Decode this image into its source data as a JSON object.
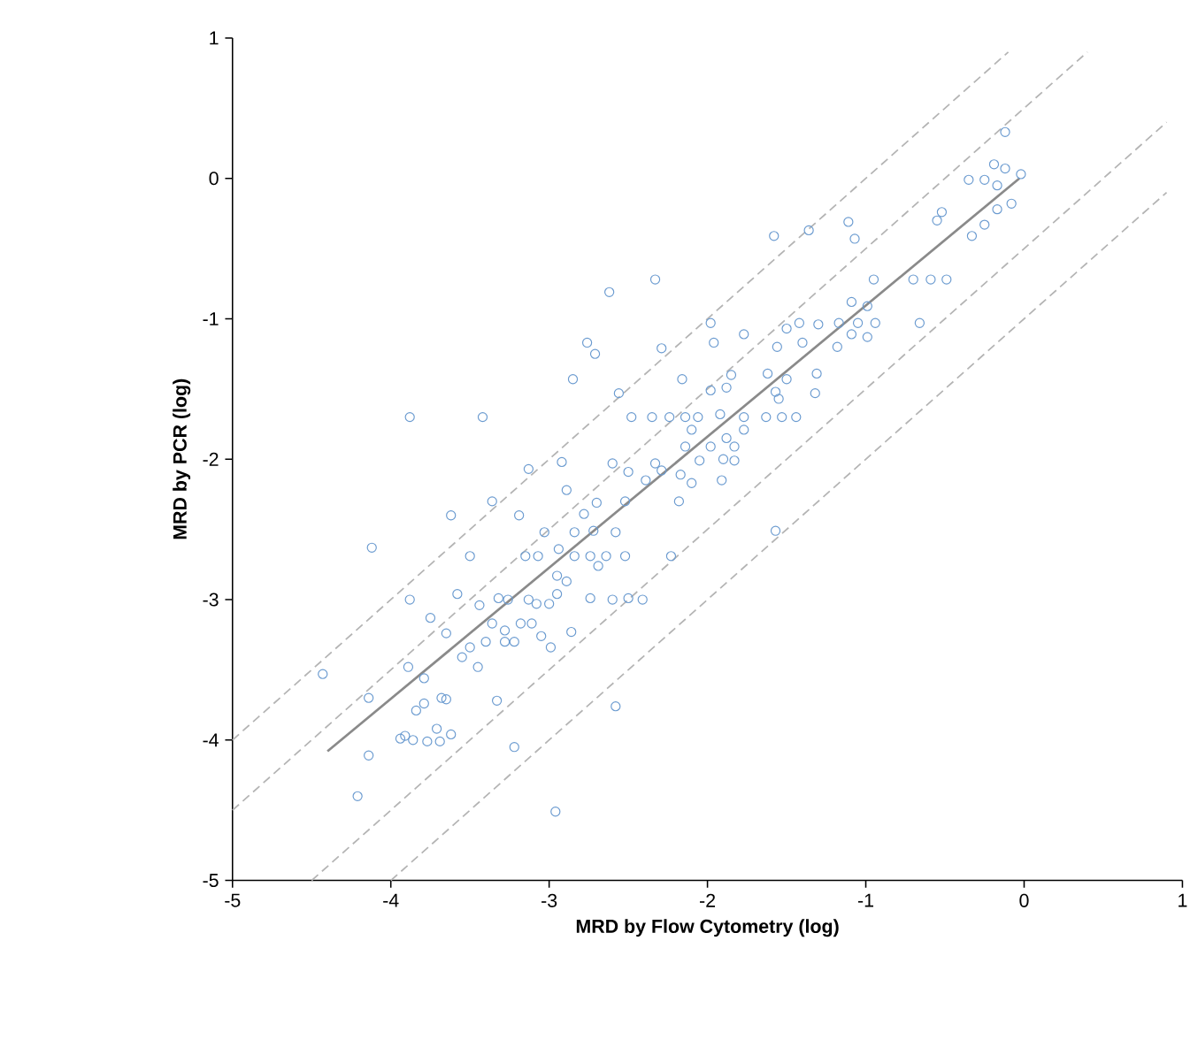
{
  "chart_data": {
    "type": "scatter",
    "xlabel": "MRD by Flow Cytometry (log)",
    "ylabel": "MRD by PCR (log)",
    "xlim": [
      -5,
      1
    ],
    "ylim": [
      -5,
      1
    ],
    "xticks": [
      -5,
      -4,
      -3,
      -2,
      -1,
      0,
      1
    ],
    "yticks": [
      -5,
      -4,
      -3,
      -2,
      -1,
      0,
      1
    ],
    "series": [
      {
        "type": "line",
        "color": "#b4b4b4",
        "line_style": "dashed",
        "marker": "none",
        "x": [
          -5,
          -0.1
        ],
        "values": [
          -4,
          0.9
        ]
      },
      {
        "type": "line",
        "color": "#b4b4b4",
        "line_style": "dashed",
        "marker": "none",
        "x": [
          -5,
          0.4
        ],
        "values": [
          -4.5,
          0.9
        ]
      },
      {
        "type": "line",
        "color": "#b4b4b4",
        "line_style": "dashed",
        "marker": "none",
        "x": [
          -4.5,
          0.9
        ],
        "values": [
          -5,
          0.4
        ]
      },
      {
        "type": "line",
        "color": "#b4b4b4",
        "line_style": "dashed",
        "marker": "none",
        "x": [
          -4,
          0.9
        ],
        "values": [
          -5,
          -0.1
        ]
      },
      {
        "color": "#6b9bd0",
        "marker": "circle",
        "x": [
          -0.12,
          -0.19,
          -0.12,
          -0.02,
          -0.35,
          -0.25,
          -0.17,
          -0.08,
          -0.17,
          -0.25,
          -0.33,
          -0.52,
          -0.55,
          -0.7,
          -0.59,
          -0.49,
          -0.66,
          -0.95,
          -1.11,
          -1.07,
          -1.36,
          -1.58,
          -1.09,
          -0.99,
          -0.94,
          -1.05,
          -1.17,
          -0.99,
          -1.09,
          -1.18,
          -1.3,
          -1.42,
          -1.5,
          -1.4,
          -1.56,
          -1.31,
          -1.32,
          -1.62,
          -1.5,
          -1.57,
          -1.55,
          -1.77,
          -1.98,
          -1.96,
          -2.29,
          -2.33,
          -2.62,
          -2.76,
          -2.71,
          -2.85,
          -2.56,
          -2.16,
          -1.85,
          -1.98,
          -1.88,
          -2.48,
          -2.35,
          -2.24,
          -2.14,
          -2.06,
          -1.92,
          -1.77,
          -1.63,
          -1.53,
          -1.44,
          -3.88,
          -3.42,
          -2.1,
          -1.77,
          -2.14,
          -1.98,
          -1.83,
          -1.88,
          -2.05,
          -1.9,
          -1.83,
          -2.17,
          -2.1,
          -1.91,
          -2.18,
          -2.6,
          -2.5,
          -2.33,
          -2.29,
          -2.39,
          -3.13,
          -2.92,
          -2.89,
          -3.36,
          -3.19,
          -3.62,
          -4.12,
          -3.5,
          -3.03,
          -2.78,
          -2.7,
          -2.52,
          -2.84,
          -2.72,
          -2.58,
          -3.15,
          -3.07,
          -2.94,
          -2.84,
          -2.74,
          -2.64,
          -2.52,
          -2.23,
          -2.69,
          -2.95,
          -2.89,
          -3.88,
          -3.58,
          -3.44,
          -3.32,
          -3.26,
          -3.13,
          -3.08,
          -3.0,
          -2.95,
          -2.74,
          -2.6,
          -2.5,
          -2.41,
          -3.75,
          -3.65,
          -3.36,
          -3.28,
          -3.18,
          -3.11,
          -3.05,
          -2.99,
          -2.86,
          -3.4,
          -3.28,
          -3.22,
          -3.5,
          -3.55,
          -3.45,
          -3.89,
          -4.43,
          -3.79,
          -4.14,
          -3.79,
          -3.84,
          -3.68,
          -3.65,
          -3.33,
          -2.58,
          -3.91,
          -3.86,
          -3.94,
          -3.77,
          -3.69,
          -3.71,
          -3.62,
          -4.14,
          -3.22,
          -4.21,
          -2.96,
          -1.57
        ],
        "values": [
          0.33,
          0.1,
          0.07,
          0.03,
          -0.01,
          -0.01,
          -0.05,
          -0.18,
          -0.22,
          -0.33,
          -0.41,
          -0.24,
          -0.3,
          -0.72,
          -0.72,
          -0.72,
          -1.03,
          -0.72,
          -0.31,
          -0.43,
          -0.37,
          -0.41,
          -0.88,
          -0.91,
          -1.03,
          -1.03,
          -1.03,
          -1.13,
          -1.11,
          -1.2,
          -1.04,
          -1.03,
          -1.07,
          -1.17,
          -1.2,
          -1.39,
          -1.53,
          -1.39,
          -1.43,
          -1.52,
          -1.57,
          -1.11,
          -1.03,
          -1.17,
          -1.21,
          -0.72,
          -0.81,
          -1.17,
          -1.25,
          -1.43,
          -1.53,
          -1.43,
          -1.4,
          -1.51,
          -1.49,
          -1.7,
          -1.7,
          -1.7,
          -1.7,
          -1.7,
          -1.68,
          -1.7,
          -1.7,
          -1.7,
          -1.7,
          -1.7,
          -1.7,
          -1.79,
          -1.79,
          -1.91,
          -1.91,
          -1.91,
          -1.85,
          -2.01,
          -2.0,
          -2.01,
          -2.11,
          -2.17,
          -2.15,
          -2.3,
          -2.03,
          -2.09,
          -2.03,
          -2.08,
          -2.15,
          -2.07,
          -2.02,
          -2.22,
          -2.3,
          -2.4,
          -2.4,
          -2.63,
          -2.69,
          -2.52,
          -2.39,
          -2.31,
          -2.3,
          -2.52,
          -2.51,
          -2.52,
          -2.69,
          -2.69,
          -2.64,
          -2.69,
          -2.69,
          -2.69,
          -2.69,
          -2.69,
          -2.76,
          -2.83,
          -2.87,
          -3.0,
          -2.96,
          -3.04,
          -2.99,
          -3.0,
          -3.0,
          -3.03,
          -3.03,
          -2.96,
          -2.99,
          -3.0,
          -2.99,
          -3.0,
          -3.13,
          -3.24,
          -3.17,
          -3.22,
          -3.17,
          -3.17,
          -3.26,
          -3.34,
          -3.23,
          -3.3,
          -3.3,
          -3.3,
          -3.34,
          -3.41,
          -3.48,
          -3.48,
          -3.53,
          -3.56,
          -3.7,
          -3.74,
          -3.79,
          -3.7,
          -3.71,
          -3.72,
          -3.76,
          -3.97,
          -4.0,
          -3.99,
          -4.01,
          -4.01,
          -3.92,
          -3.96,
          -4.11,
          -4.05,
          -4.4,
          -4.51,
          -2.51
        ]
      },
      {
        "type": "line",
        "color": "#8a8a8a",
        "line_style": "solid",
        "marker": "none",
        "x": [
          -4.4,
          -0.03
        ],
        "values": [
          -4.08,
          0.0
        ]
      }
    ]
  }
}
